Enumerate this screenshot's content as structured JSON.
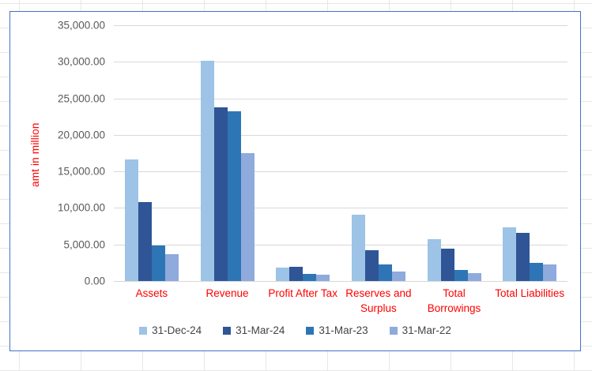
{
  "chart": {
    "border_color": "#4472C4",
    "gridline_color": "#D9D9D9",
    "plot_bg": "#FFFFFF",
    "axis_title_color": "#FF0000",
    "category_label_color": "#FF0000",
    "tick_label_color": "#595959",
    "legend_text_color": "#444444"
  },
  "chart_data": {
    "type": "bar",
    "title": "",
    "xlabel": "",
    "ylabel": "amt in million",
    "ylim": [
      0,
      35000
    ],
    "ytick_step": 5000,
    "ytick_labels": [
      "35,000.00",
      "30,000.00",
      "25,000.00",
      "20,000.00",
      "15,000.00",
      "10,000.00",
      "5,000.00",
      "0.00"
    ],
    "grid": true,
    "legend_position": "bottom",
    "categories": [
      "Assets",
      "Revenue",
      "Profit After Tax",
      "Reserves and Surplus",
      "Total Borrowings",
      "Total Liabilities"
    ],
    "category_label_lines": [
      [
        "Assets"
      ],
      [
        "Revenue"
      ],
      [
        "Profit After Tax"
      ],
      [
        "Reserves and",
        "Surplus"
      ],
      [
        "Total",
        "Borrowings"
      ],
      [
        "Total Liabilities"
      ]
    ],
    "series": [
      {
        "name": "31-Dec-24",
        "color": "#9DC3E6",
        "values": [
          16600,
          30150,
          1800,
          9050,
          5700,
          7400
        ]
      },
      {
        "name": "31-Mar-24",
        "color": "#2F5597",
        "values": [
          10850,
          23800,
          1950,
          4200,
          4450,
          6580
        ]
      },
      {
        "name": "31-Mar-23",
        "color": "#2E75B6",
        "values": [
          4900,
          23250,
          1000,
          2300,
          1500,
          2450
        ]
      },
      {
        "name": "31-Mar-22",
        "color": "#8FAADC",
        "values": [
          3650,
          17550,
          850,
          1300,
          1120,
          2280
        ]
      }
    ]
  }
}
